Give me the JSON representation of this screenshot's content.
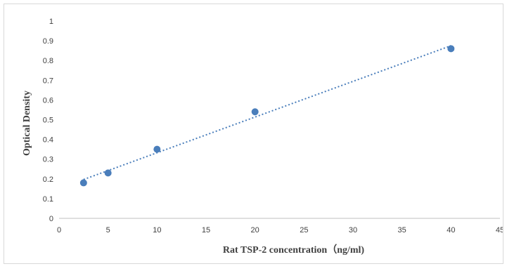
{
  "chart_data": {
    "type": "scatter",
    "xlabel": "Rat TSP-2 concentration（ng/ml)",
    "ylabel": "Optical Density",
    "xlim": [
      0,
      45
    ],
    "ylim": [
      0,
      1
    ],
    "x_ticks": [
      "0",
      "5",
      "10",
      "15",
      "20",
      "25",
      "30",
      "35",
      "40",
      "45"
    ],
    "y_ticks": [
      "0",
      "0.1",
      "0.2",
      "0.3",
      "0.4",
      "0.5",
      "0.6",
      "0.7",
      "0.8",
      "0.9",
      "1"
    ],
    "grid": false,
    "series": [
      {
        "points": [
          {
            "x": 2.5,
            "y": 0.18
          },
          {
            "x": 5,
            "y": 0.23
          },
          {
            "x": 10,
            "y": 0.35
          },
          {
            "x": 20,
            "y": 0.54
          },
          {
            "x": 40,
            "y": 0.86
          }
        ],
        "color": "#4a7ebb"
      }
    ],
    "trendline": {
      "kind": "linear",
      "style": "dotted",
      "color": "#4a7ebb",
      "x_range": [
        2.5,
        40
      ]
    }
  }
}
